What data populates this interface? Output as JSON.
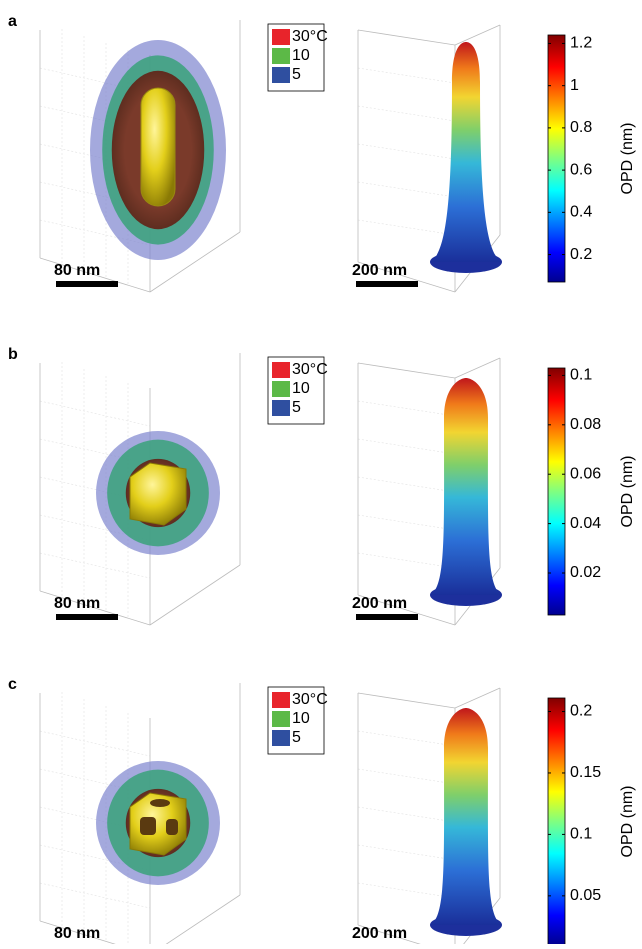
{
  "panels": [
    {
      "label": "a",
      "legend": {
        "entries": [
          {
            "name": "30°C",
            "color": "#e8242b"
          },
          {
            "name": "10",
            "color": "#5cb947"
          },
          {
            "name": "5",
            "color": "#2f4fa0"
          }
        ]
      },
      "scalebar_left": "80 nm",
      "scalebar_right": "200 nm",
      "colorbar": {
        "label": "OPD (nm)",
        "lim": [
          0.07,
          1.24
        ],
        "ticks": [
          0.2,
          0.4,
          0.6,
          0.8,
          1,
          1.2
        ]
      }
    },
    {
      "label": "b",
      "legend": {
        "entries": [
          {
            "name": "30°C",
            "color": "#e8242b"
          },
          {
            "name": "10",
            "color": "#5cb947"
          },
          {
            "name": "5",
            "color": "#2f4fa0"
          }
        ]
      },
      "scalebar_left": "80 nm",
      "scalebar_right": "200 nm",
      "colorbar": {
        "label": "OPD (nm)",
        "lim": [
          0.003,
          0.103
        ],
        "ticks": [
          0.02,
          0.04,
          0.06,
          0.08,
          0.1
        ]
      }
    },
    {
      "label": "c",
      "legend": {
        "entries": [
          {
            "name": "30°C",
            "color": "#e8242b"
          },
          {
            "name": "10",
            "color": "#5cb947"
          },
          {
            "name": "5",
            "color": "#2f4fa0"
          }
        ]
      },
      "scalebar_left": "80 nm",
      "scalebar_right": "200 nm",
      "colorbar": {
        "label": "OPD (nm)",
        "lim": [
          0.01,
          0.211
        ],
        "ticks": [
          0.05,
          0.1,
          0.15,
          0.2
        ]
      }
    }
  ]
}
